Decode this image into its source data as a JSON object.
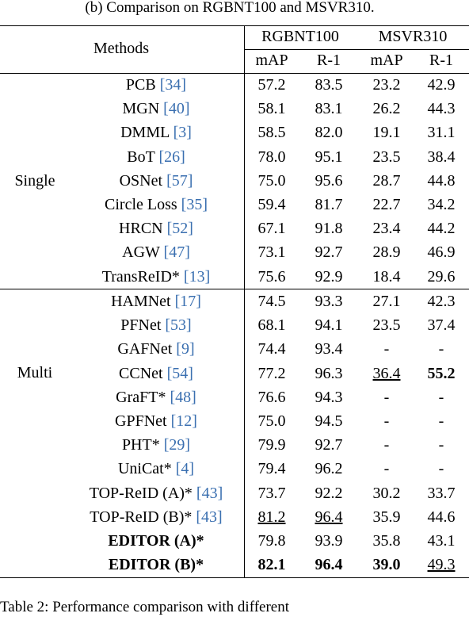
{
  "caption": "(b) Comparison on RGBNT100 and MSVR310.",
  "header": {
    "methods": "Methods",
    "groups": [
      {
        "name": "RGBNT100",
        "metrics": [
          "mAP",
          "R-1"
        ]
      },
      {
        "name": "MSVR310",
        "metrics": [
          "mAP",
          "R-1"
        ]
      }
    ]
  },
  "sections": [
    {
      "label": "Single",
      "rows": [
        {
          "method": "PCB",
          "ref": "[34]",
          "cells": [
            "57.2",
            "83.5",
            "23.2",
            "42.9"
          ]
        },
        {
          "method": "MGN",
          "ref": "[40]",
          "cells": [
            "58.1",
            "83.1",
            "26.2",
            "44.3"
          ]
        },
        {
          "method": "DMML",
          "ref": "[3]",
          "cells": [
            "58.5",
            "82.0",
            "19.1",
            "31.1"
          ]
        },
        {
          "method": "BoT",
          "ref": "[26]",
          "cells": [
            "78.0",
            "95.1",
            "23.5",
            "38.4"
          ]
        },
        {
          "method": "OSNet",
          "ref": "[57]",
          "cells": [
            "75.0",
            "95.6",
            "28.7",
            "44.8"
          ]
        },
        {
          "method": "Circle Loss",
          "ref": "[35]",
          "cells": [
            "59.4",
            "81.7",
            "22.7",
            "34.2"
          ]
        },
        {
          "method": "HRCN",
          "ref": "[52]",
          "cells": [
            "67.1",
            "91.8",
            "23.4",
            "44.2"
          ]
        },
        {
          "method": "AGW",
          "ref": "[47]",
          "cells": [
            "73.1",
            "92.7",
            "28.9",
            "46.9"
          ]
        },
        {
          "method": "TransReID*",
          "ref": "[13]",
          "cells": [
            "75.6",
            "92.9",
            "18.4",
            "29.6"
          ]
        }
      ]
    },
    {
      "label": "Multi",
      "rows": [
        {
          "method": "HAMNet",
          "ref": "[17]",
          "cells": [
            "74.5",
            "93.3",
            "27.1",
            "42.3"
          ]
        },
        {
          "method": "PFNet",
          "ref": "[53]",
          "cells": [
            "68.1",
            "94.1",
            "23.5",
            "37.4"
          ]
        },
        {
          "method": "GAFNet",
          "ref": "[9]",
          "cells": [
            "74.4",
            "93.4",
            "-",
            "-"
          ]
        },
        {
          "method": "CCNet",
          "ref": "[54]",
          "cells": [
            "77.2",
            "96.3",
            "36.4",
            "55.2"
          ],
          "underline": [
            2
          ],
          "bold": [
            3
          ]
        },
        {
          "method": "GraFT*",
          "ref": "[48]",
          "cells": [
            "76.6",
            "94.3",
            "-",
            "-"
          ]
        },
        {
          "method": "GPFNet",
          "ref": "[12]",
          "cells": [
            "75.0",
            "94.5",
            "-",
            "-"
          ]
        },
        {
          "method": "PHT*",
          "ref": "[29]",
          "cells": [
            "79.9",
            "92.7",
            "-",
            "-"
          ]
        },
        {
          "method": "UniCat*",
          "ref": "[4]",
          "cells": [
            "79.4",
            "96.2",
            "-",
            "-"
          ]
        },
        {
          "method": "TOP-ReID (A)*",
          "ref": "[43]",
          "cells": [
            "73.7",
            "92.2",
            "30.2",
            "33.7"
          ]
        },
        {
          "method": "TOP-ReID (B)*",
          "ref": "[43]",
          "cells": [
            "81.2",
            "96.4",
            "35.9",
            "44.6"
          ],
          "underline": [
            0,
            1
          ]
        },
        {
          "method": "EDITOR (A)*",
          "method_bold": true,
          "cells": [
            "79.8",
            "93.9",
            "35.8",
            "43.1"
          ]
        },
        {
          "method": "EDITOR (B)*",
          "method_bold": true,
          "cells": [
            "82.1",
            "96.4",
            "39.0",
            "49.3"
          ],
          "bold": [
            0,
            1,
            2
          ],
          "underline": [
            3
          ]
        }
      ]
    }
  ],
  "footer": "Table 2: Performance comparison with different"
}
